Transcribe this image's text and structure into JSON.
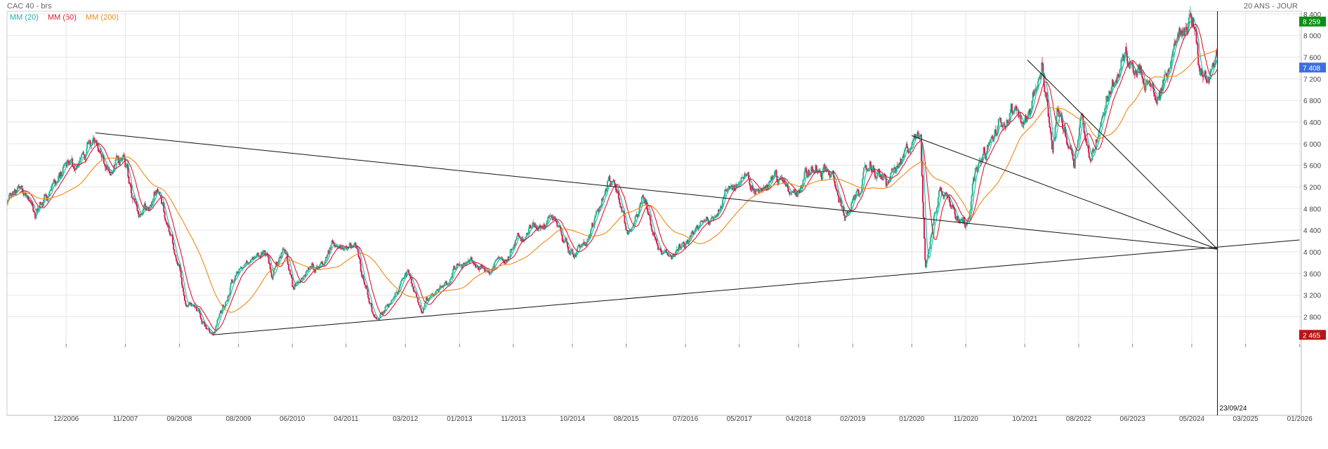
{
  "header": {
    "title": "CAC 40 - brs",
    "period": "20 ANS - JOUR"
  },
  "legend": [
    {
      "label": "MM (20)",
      "color": "#17b5ad"
    },
    {
      "label": "MM (50)",
      "color": "#e0182d"
    },
    {
      "label": "MM (200)",
      "color": "#f08a18"
    }
  ],
  "colors": {
    "up": "#2bb58c",
    "down": "#d41f4f",
    "grid": "#e6e6e6",
    "trendline": "#111111",
    "badge_high": "#0a8f14",
    "badge_last": "#3a6fe0",
    "badge_low": "#b91416"
  },
  "badges": {
    "high": "8 259",
    "last": "7 408",
    "low": "2 465"
  },
  "cursor": {
    "label": "23/09/24",
    "date": "2024-09-23"
  },
  "chart_data": {
    "type": "candlestick",
    "title": "CAC 40 - brs",
    "period": "20 ANS - JOUR",
    "y_ticks": [
      2800,
      3200,
      3600,
      4000,
      4400,
      4800,
      5200,
      5600,
      6000,
      6400,
      6800,
      7200,
      7600,
      8000,
      8400
    ],
    "y_tick_labels": [
      "2 800",
      "3 200",
      "3 600",
      "4 000",
      "4 400",
      "4 800",
      "5 200",
      "5 600",
      "6 000",
      "6 400",
      "6 800",
      "7 200",
      "7 600",
      "8 000",
      "8 400"
    ],
    "ylim": [
      2300,
      8450
    ],
    "x_ticks": [
      "2006-12-01",
      "2007-11-01",
      "2008-09-01",
      "2009-08-01",
      "2010-06-01",
      "2011-04-01",
      "2012-03-01",
      "2013-01-01",
      "2013-11-01",
      "2014-10-01",
      "2015-08-01",
      "2016-07-01",
      "2017-05-01",
      "2018-04-01",
      "2019-02-01",
      "2020-01-01",
      "2020-11-01",
      "2021-10-01",
      "2022-08-01",
      "2023-06-01",
      "2024-05-01",
      "2025-03-01",
      "2026-01-01"
    ],
    "x_tick_labels": [
      "12/2006",
      "11/2007",
      "09/2008",
      "08/2009",
      "06/2010",
      "04/2011",
      "03/2012",
      "01/2013",
      "11/2013",
      "10/2014",
      "08/2015",
      "07/2016",
      "05/2017",
      "04/2018",
      "02/2019",
      "01/2020",
      "11/2020",
      "10/2021",
      "08/2022",
      "06/2023",
      "05/2024",
      "03/2025",
      "01/2026"
    ],
    "xlim": [
      "2006-01-01",
      "2026-01-10"
    ],
    "grid": true,
    "legend_position": "top-left",
    "price_path": [
      [
        "2006-01-01",
        4880
      ],
      [
        "2006-04-01",
        5230
      ],
      [
        "2006-06-10",
        4630
      ],
      [
        "2006-09-01",
        5200
      ],
      [
        "2006-12-01",
        5500
      ],
      [
        "2007-03-01",
        5700
      ],
      [
        "2007-06-01",
        6100
      ],
      [
        "2007-08-15",
        5450
      ],
      [
        "2007-10-15",
        5800
      ],
      [
        "2008-01-21",
        4650
      ],
      [
        "2008-05-01",
        5000
      ],
      [
        "2008-07-15",
        4250
      ],
      [
        "2008-10-10",
        3050
      ],
      [
        "2008-11-15",
        3100
      ],
      [
        "2009-03-09",
        2470
      ],
      [
        "2009-06-01",
        3250
      ],
      [
        "2009-09-01",
        3750
      ],
      [
        "2009-10-15",
        3850
      ],
      [
        "2010-01-15",
        4000
      ],
      [
        "2010-02-05",
        3550
      ],
      [
        "2010-04-15",
        4050
      ],
      [
        "2010-06-05",
        3400
      ],
      [
        "2010-09-01",
        3650
      ],
      [
        "2011-02-15",
        4150
      ],
      [
        "2011-06-01",
        4000
      ],
      [
        "2011-08-10",
        3000
      ],
      [
        "2011-09-22",
        2750
      ],
      [
        "2011-12-01",
        3100
      ],
      [
        "2012-03-15",
        3600
      ],
      [
        "2012-06-01",
        2950
      ],
      [
        "2012-12-01",
        3650
      ],
      [
        "2013-03-15",
        3800
      ],
      [
        "2013-06-20",
        3650
      ],
      [
        "2013-12-31",
        4300
      ],
      [
        "2014-04-15",
        4500
      ],
      [
        "2014-06-10",
        4600
      ],
      [
        "2014-10-16",
        3900
      ],
      [
        "2014-12-31",
        4250
      ],
      [
        "2015-04-27",
        5250
      ],
      [
        "2015-06-30",
        4800
      ],
      [
        "2015-08-24",
        4300
      ],
      [
        "2015-11-01",
        4950
      ],
      [
        "2016-02-11",
        3900
      ],
      [
        "2016-06-24",
        4050
      ],
      [
        "2016-12-31",
        4850
      ],
      [
        "2017-05-15",
        5400
      ],
      [
        "2017-08-15",
        5050
      ],
      [
        "2017-11-01",
        5500
      ],
      [
        "2018-02-09",
        5100
      ],
      [
        "2018-06-15",
        5500
      ],
      [
        "2018-10-01",
        5450
      ],
      [
        "2018-12-27",
        4600
      ],
      [
        "2019-04-30",
        5550
      ],
      [
        "2019-08-15",
        5300
      ],
      [
        "2019-12-31",
        5950
      ],
      [
        "2020-02-19",
        6100
      ],
      [
        "2020-03-18",
        3750
      ],
      [
        "2020-06-08",
        5200
      ],
      [
        "2020-09-25",
        4700
      ],
      [
        "2020-10-30",
        4550
      ],
      [
        "2020-12-31",
        5550
      ],
      [
        "2021-03-31",
        6050
      ],
      [
        "2021-06-30",
        6550
      ],
      [
        "2021-09-30",
        6500
      ],
      [
        "2022-01-05",
        7350
      ],
      [
        "2022-03-07",
        5850
      ],
      [
        "2022-03-31",
        6650
      ],
      [
        "2022-07-05",
        5800
      ],
      [
        "2022-08-15",
        6600
      ],
      [
        "2022-09-30",
        5700
      ],
      [
        "2023-01-31",
        7080
      ],
      [
        "2023-04-20",
        7550
      ],
      [
        "2023-06-15",
        7300
      ],
      [
        "2023-10-26",
        6850
      ],
      [
        "2023-12-31",
        7550
      ],
      [
        "2024-03-15",
        8150
      ],
      [
        "2024-05-15",
        8250
      ],
      [
        "2024-06-14",
        7500
      ],
      [
        "2024-08-05",
        7150
      ],
      [
        "2024-09-23",
        7408
      ]
    ],
    "series": [
      {
        "name": "MM (20)",
        "period": 20,
        "color": "#17b5ad"
      },
      {
        "name": "MM (50)",
        "period": 50,
        "color": "#e0182d"
      },
      {
        "name": "MM (200)",
        "period": 200,
        "color": "#f08a18"
      }
    ],
    "trendlines": [
      {
        "from": [
          "2007-05-15",
          6200
        ],
        "to": [
          "2024-09-23",
          4050
        ]
      },
      {
        "from": [
          "2009-03-09",
          2465
        ],
        "to": [
          "2025-12-31",
          4220
        ]
      },
      {
        "from": [
          "2019-12-31",
          6150
        ],
        "to": [
          "2024-09-23",
          4050
        ]
      },
      {
        "from": [
          "2021-10-15",
          7550
        ],
        "to": [
          "2024-09-23",
          4050
        ]
      }
    ]
  }
}
